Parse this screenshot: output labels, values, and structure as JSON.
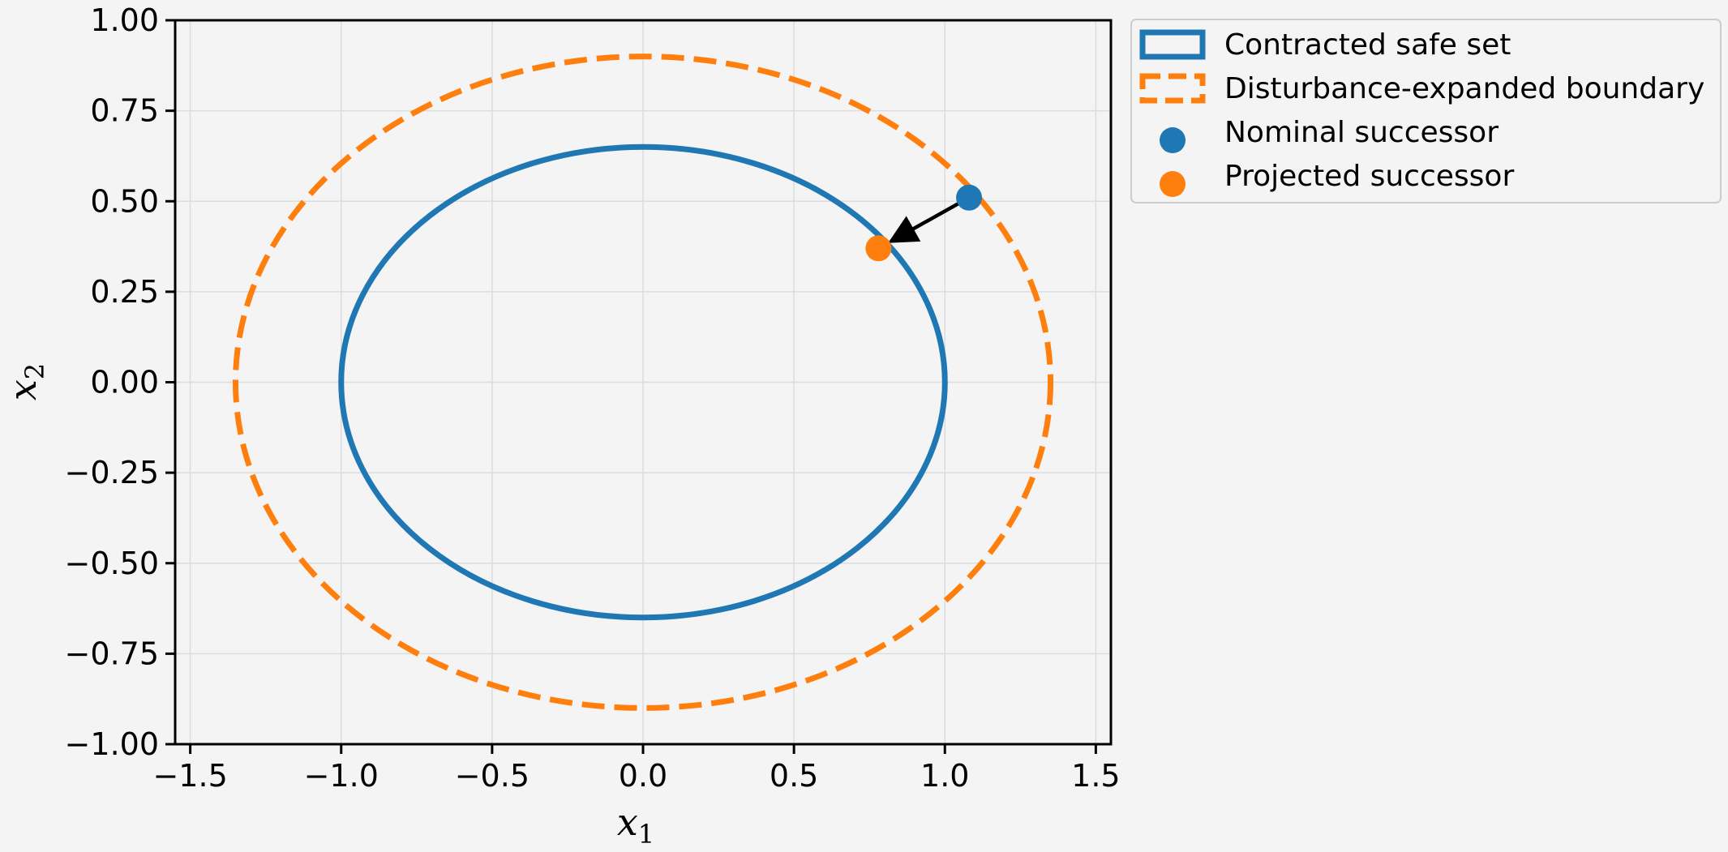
{
  "chart_data": {
    "type": "scatter",
    "title": "",
    "xlabel": {
      "base": "x",
      "sub": "1"
    },
    "ylabel": {
      "base": "x",
      "sub": "2"
    },
    "xlim": [
      -1.55,
      1.55
    ],
    "ylim": [
      -1.0,
      1.0
    ],
    "grid": true,
    "legend_position": "outside-top-right",
    "x_ticks": [
      -1.5,
      -1.0,
      -0.5,
      0.0,
      0.5,
      1.0,
      1.5
    ],
    "x_tick_labels": [
      "−1.5",
      "−1.0",
      "−0.5",
      "0.0",
      "0.5",
      "1.0",
      "1.5"
    ],
    "y_ticks": [
      1.0,
      0.75,
      0.5,
      0.25,
      0.0,
      -0.25,
      -0.5,
      -0.75,
      -1.0
    ],
    "y_tick_labels": [
      "1.00",
      "0.75",
      "0.50",
      "0.25",
      "0.00",
      "−0.25",
      "−0.50",
      "−0.75",
      "−1.00"
    ],
    "series": [
      {
        "name": "Contracted safe set",
        "kind": "ellipse",
        "center": [
          0.0,
          0.0
        ],
        "rx": 1.0,
        "ry": 0.65,
        "style": "solid",
        "color": "#1f77b4"
      },
      {
        "name": "Disturbance-expanded boundary",
        "kind": "ellipse",
        "center": [
          0.0,
          0.0
        ],
        "rx": 1.35,
        "ry": 0.9,
        "style": "dashed",
        "color": "#ff7f0e"
      },
      {
        "name": "Nominal successor",
        "kind": "point",
        "x": 1.08,
        "y": 0.51,
        "color": "#1f77b4"
      },
      {
        "name": "Projected successor",
        "kind": "point",
        "x": 0.78,
        "y": 0.37,
        "color": "#ff7f0e"
      }
    ],
    "annotations": [
      {
        "kind": "arrow",
        "from": [
          1.08,
          0.51
        ],
        "to": [
          0.78,
          0.37
        ],
        "color": "#000000"
      }
    ]
  }
}
